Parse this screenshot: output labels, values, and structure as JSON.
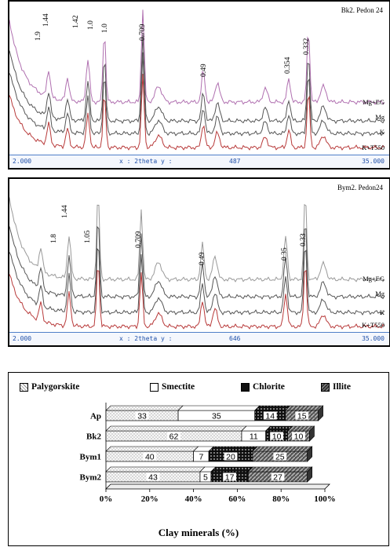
{
  "xrd_panels": [
    {
      "title": "Bk2. Pedon 24",
      "traces": [
        "Mg+EG",
        "Mg",
        "K",
        "K+T550"
      ],
      "peaks": [
        "1.9",
        "1.44",
        "1.42",
        "1.0",
        "1.0",
        "0.709",
        "0.49",
        "0.354",
        "0.332"
      ],
      "status": {
        "left": "2.000",
        "middle": "x : 2theta y :",
        "reading": "487",
        "right": "35.000"
      }
    },
    {
      "title": "Bym2. Pedon24",
      "traces": [
        "Mg+EG",
        "Mg",
        "K",
        "K+T550"
      ],
      "peaks": [
        "1.8",
        "1.44",
        "1.05",
        "0.709",
        "0.49",
        "0.35",
        "0.33"
      ],
      "status": {
        "left": "2.000",
        "middle": "x : 2theta y :",
        "reading": "646",
        "right": "35.000"
      }
    }
  ],
  "chart_data": {
    "type": "bar",
    "orientation": "horizontal",
    "stacked": true,
    "categories": [
      "Ap",
      "Bk2",
      "Bym1",
      "Bym2"
    ],
    "series": [
      {
        "name": "Palygorskite",
        "values": [
          33,
          62,
          40,
          43
        ],
        "color": "#d9d9d9",
        "pattern": "cross-hatch"
      },
      {
        "name": "Smectite",
        "values": [
          35,
          11,
          7,
          5
        ],
        "color": "#ffffff",
        "pattern": "plain"
      },
      {
        "name": "Chlorite",
        "values": [
          14,
          10,
          20,
          17
        ],
        "color": "#111111",
        "pattern": "dots"
      },
      {
        "name": "Illite",
        "values": [
          15,
          10,
          25,
          27
        ],
        "color": "#777777",
        "pattern": "diagonal"
      }
    ],
    "xlabel": "Clay minerals (%)",
    "xticks": [
      "0%",
      "20%",
      "40%",
      "60%",
      "80%",
      "100%"
    ],
    "xlim": [
      0,
      100
    ],
    "legend_position": "top",
    "three_d": true
  },
  "colors": {
    "trace": "#555555",
    "trace_red": "#b83a3a",
    "trace_pink": "#c060a0",
    "status_blue": "#1f4fa8"
  }
}
